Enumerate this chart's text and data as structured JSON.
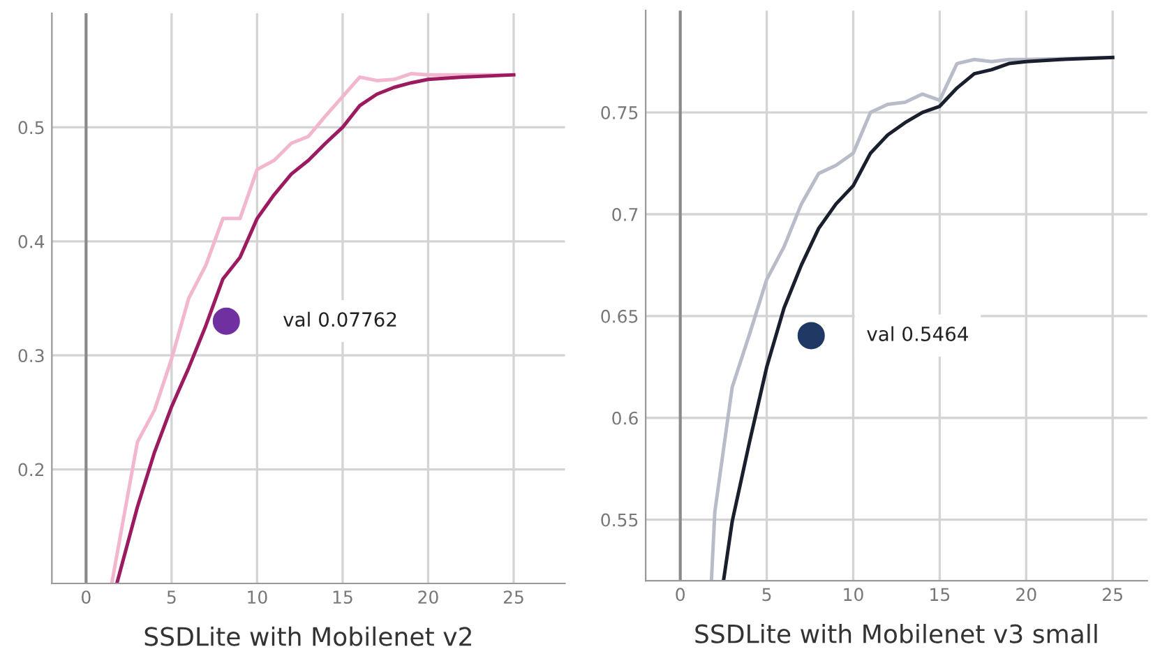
{
  "chart_data": [
    {
      "type": "line",
      "xlabel": "SSDLite with Mobilenet v2",
      "xlim": [
        -2,
        28
      ],
      "ylim": [
        0.1,
        0.6
      ],
      "xticks": [
        0,
        5,
        10,
        15,
        20,
        25
      ],
      "yticks": [
        0.2,
        0.3,
        0.4,
        0.5
      ],
      "grid": true,
      "annotations": [
        "val 0.07762"
      ],
      "ref_lines": [
        {
          "axis": "x",
          "value": 0,
          "color": "#8a8a8a"
        }
      ],
      "series": [
        {
          "color": "#f2b6cf",
          "x": [
            1.5,
            3,
            4,
            5,
            6,
            7,
            8,
            9,
            10,
            11,
            12,
            13,
            14,
            15,
            16,
            17,
            18,
            19,
            20,
            25
          ],
          "values": [
            0.1,
            0.224,
            0.252,
            0.297,
            0.35,
            0.379,
            0.42,
            0.42,
            0.463,
            0.471,
            0.486,
            0.492,
            0.51,
            0.527,
            0.544,
            0.541,
            0.542,
            0.547,
            0.546,
            0.546
          ]
        },
        {
          "color": "#9c1a60",
          "x": [
            1.8,
            3,
            4,
            5,
            6,
            7,
            8,
            9,
            10,
            11,
            12,
            13,
            14,
            15,
            16,
            17,
            18,
            19,
            20,
            22,
            25
          ],
          "values": [
            0.1,
            0.167,
            0.215,
            0.255,
            0.289,
            0.326,
            0.367,
            0.386,
            0.42,
            0.441,
            0.459,
            0.471,
            0.486,
            0.5,
            0.519,
            0.529,
            0.535,
            0.539,
            0.542,
            0.544,
            0.546
          ]
        }
      ]
    },
    {
      "type": "line",
      "xlabel": "SSDLite with Mobilenet v3 small",
      "xlim": [
        -2,
        27
      ],
      "ylim": [
        0.52,
        0.8
      ],
      "xticks": [
        0,
        5,
        10,
        15,
        20,
        25
      ],
      "yticks": [
        0.55,
        0.6,
        0.65,
        0.7,
        0.75
      ],
      "grid": true,
      "annotations": [
        "val 0.5464"
      ],
      "ref_lines": [
        {
          "axis": "x",
          "value": 0,
          "color": "#8a8a8a"
        }
      ],
      "series": [
        {
          "color": "#b8bcc8",
          "x": [
            1.8,
            2,
            3,
            4,
            5,
            6,
            7,
            8,
            9,
            10,
            11,
            12,
            13,
            14,
            15,
            16,
            17,
            18,
            19,
            20,
            25
          ],
          "values": [
            0.52,
            0.554,
            0.615,
            0.641,
            0.668,
            0.684,
            0.705,
            0.72,
            0.724,
            0.73,
            0.75,
            0.754,
            0.755,
            0.759,
            0.756,
            0.774,
            0.776,
            0.775,
            0.776,
            0.776,
            0.777
          ]
        },
        {
          "color": "#1a1f2e",
          "x": [
            2.5,
            3,
            4,
            5,
            6,
            7,
            8,
            9,
            10,
            11,
            12,
            13,
            14,
            15,
            16,
            17,
            18,
            19,
            20,
            22,
            25
          ],
          "values": [
            0.52,
            0.549,
            0.588,
            0.625,
            0.654,
            0.675,
            0.693,
            0.705,
            0.714,
            0.73,
            0.739,
            0.745,
            0.75,
            0.753,
            0.762,
            0.769,
            0.771,
            0.774,
            0.775,
            0.776,
            0.777
          ]
        }
      ]
    }
  ]
}
